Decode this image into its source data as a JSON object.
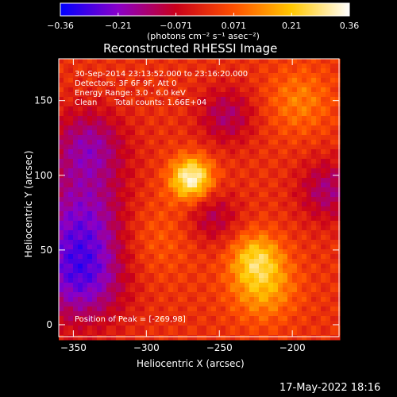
{
  "chart_data": {
    "type": "heatmap",
    "title": "Reconstructed RHESSI Image",
    "xlabel": "Heliocentric X (arcsec)",
    "ylabel": "Heliocentric Y (arcsec)",
    "xlim": [
      -360,
      -168
    ],
    "ylim": [
      -8,
      178
    ],
    "xticks": [
      -350,
      -300,
      -250,
      -200
    ],
    "yticks": [
      0,
      50,
      100,
      150
    ],
    "colorbar": {
      "label": "(photons cm⁻² s⁻¹ asec⁻²)",
      "range": [
        -0.36,
        0.36
      ],
      "ticks": [
        "−0.36",
        "−0.21",
        "−0.071",
        "0.071",
        "0.21",
        "0.36"
      ],
      "colors": [
        "#0000ff",
        "#8a00c8",
        "#c8001a",
        "#ff5000",
        "#ffc800",
        "#ffffff"
      ]
    },
    "annotations": {
      "time_range": "30-Sep-2014 23:13:52.000 to 23:16:20.000",
      "detectors": "Detectors: 3F 6F 9F, Att 0",
      "energy": "Energy Range: 3.0 - 6.0 keV",
      "method": "Clean",
      "counts": "Total counts: 1.66E+04",
      "peak": "Position of Peak = [-269,98]"
    },
    "peak": [
      -269,
      98
    ]
  },
  "footer": {
    "timestamp": "17-May-2022 18:16"
  }
}
